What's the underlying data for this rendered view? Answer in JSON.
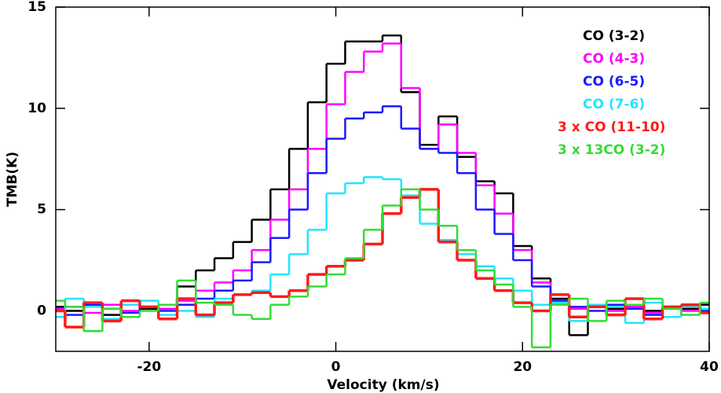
{
  "chart_data": {
    "type": "step",
    "x_label": "Velocity (km/s)",
    "y_label": "TMB(K)",
    "xlim": [
      -30,
      40
    ],
    "xticks": [
      -20,
      0,
      20,
      40
    ],
    "ylim": [
      -2,
      15
    ],
    "yticks": [
      0,
      5,
      10,
      15
    ],
    "legend": "top-right",
    "x": [
      -30,
      -28,
      -26,
      -24,
      -22,
      -20,
      -18,
      -16,
      -14,
      -12,
      -10,
      -8,
      -6,
      -4,
      -2,
      0,
      2,
      4,
      6,
      8,
      10,
      12,
      14,
      16,
      18,
      20,
      22,
      24,
      26,
      28,
      30,
      32,
      34,
      36,
      38,
      40
    ],
    "series": [
      {
        "name": "CO (3-2)",
        "color": "#000000",
        "values": [
          0.2,
          0,
          0.3,
          -0.2,
          0.3,
          0.1,
          0.3,
          1.2,
          2,
          2.6,
          3.4,
          4.5,
          6,
          8,
          10.3,
          12.2,
          13.3,
          13.3,
          13.6,
          10.8,
          8.2,
          9.6,
          7.6,
          6.4,
          5.8,
          3.2,
          1.6,
          0.6,
          -1.2,
          0.2,
          0.1,
          0.3,
          0,
          0.2,
          0.1,
          0.3
        ]
      },
      {
        "name": "CO (4-3)",
        "color": "#ff00ff",
        "values": [
          0.1,
          0.2,
          -0.1,
          0.3,
          0,
          0.2,
          0.1,
          0.5,
          1,
          1.4,
          2,
          3,
          4.5,
          6,
          8,
          10.2,
          11.8,
          12.8,
          13.2,
          11,
          8,
          9.2,
          7.8,
          6.2,
          4.8,
          3,
          1.4,
          0.4,
          0.1,
          0.3,
          0,
          0.2,
          -0.1,
          0.2,
          0,
          0.1
        ]
      },
      {
        "name": "CO (6-5)",
        "color": "#1a1aff",
        "values": [
          0,
          -0.2,
          0.3,
          0.1,
          -0.1,
          0.2,
          0,
          0.3,
          0.6,
          1,
          1.5,
          2.4,
          3.6,
          5,
          6.8,
          8.5,
          9.5,
          9.8,
          10.1,
          9,
          8,
          7.8,
          6.8,
          5,
          3.8,
          2.5,
          1.2,
          0.5,
          0.2,
          0,
          0.3,
          0.1,
          -0.2,
          0.1,
          0.3,
          0
        ]
      },
      {
        "name": "CO (7-6)",
        "color": "#22e6ff",
        "values": [
          -0.3,
          0.6,
          0.2,
          -0.4,
          0.3,
          0.5,
          -0.2,
          0,
          -0.3,
          0.6,
          0.8,
          1,
          1.8,
          2.8,
          4,
          5.8,
          6.3,
          6.6,
          6.5,
          5.7,
          4.3,
          3.5,
          2.8,
          2.2,
          1.6,
          1,
          0.3,
          0.4,
          -0.5,
          0.3,
          0.2,
          -0.6,
          0.4,
          -0.3,
          0.2,
          0.1
        ]
      },
      {
        "name": "3 x CO (11-10)",
        "color": "#ff1a1a",
        "values": [
          0,
          -0.8,
          0.4,
          -0.5,
          0.5,
          0.2,
          -0.4,
          0.6,
          -0.2,
          0.4,
          0.8,
          0.9,
          0.7,
          1,
          1.8,
          2.2,
          2.5,
          3.3,
          4.8,
          5.6,
          6,
          3.4,
          2.5,
          1.6,
          1,
          0.4,
          0,
          0.8,
          -0.3,
          0.2,
          -0.2,
          0.6,
          -0.4,
          0.2,
          0.3,
          -0.1
        ]
      },
      {
        "name": "3 x 13CO (3-2)",
        "color": "#33dd33",
        "values": [
          0.5,
          0.2,
          -1,
          0.1,
          -0.3,
          0,
          0.3,
          1.5,
          0.4,
          0.3,
          -0.2,
          -0.4,
          0.3,
          0.7,
          1.2,
          1.8,
          2.6,
          4,
          5.2,
          6,
          5,
          4.2,
          3,
          2,
          1.3,
          0.2,
          -1.8,
          0.3,
          0.6,
          -0.5,
          0.5,
          0.3,
          0.6,
          0.1,
          -0.2,
          0.4
        ]
      }
    ]
  }
}
